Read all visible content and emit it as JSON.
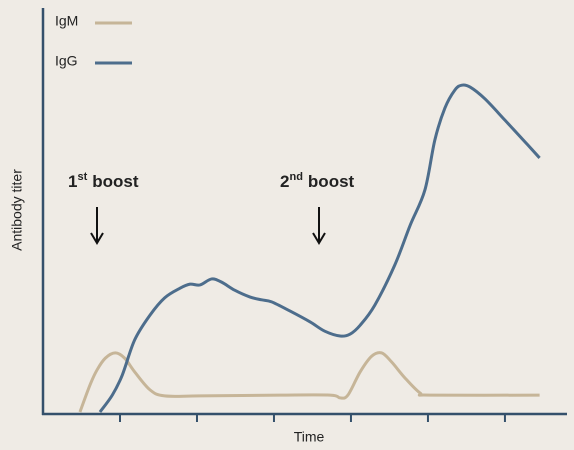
{
  "chart_data": {
    "type": "line",
    "xlabel": "Time",
    "ylabel": "Antibody titer",
    "xlim": [
      0,
      6.78
    ],
    "ylim": [
      0,
      100
    ],
    "xticks": [
      1,
      2,
      3,
      4,
      5,
      6
    ],
    "legend": "upper left",
    "annotations": [
      {
        "text": "1",
        "superscript": "st",
        "suffix": "boost"
      },
      {
        "text": "2",
        "superscript": "nd",
        "suffix": "boost"
      }
    ],
    "series": [
      {
        "name": "IgM",
        "color": "#c6b598",
        "x": [
          0.48,
          0.61,
          0.7,
          0.81,
          0.94,
          1.06,
          1.19,
          1.39,
          1.58,
          2.04,
          3.08,
          3.73,
          3.86,
          3.96,
          4.12,
          4.27,
          4.4,
          4.53,
          4.7,
          4.9,
          5.03,
          6.45
        ],
        "values": [
          0,
          6.7,
          10.4,
          13.4,
          14.7,
          13.4,
          10.0,
          5.5,
          4.0,
          4.0,
          4.2,
          4.2,
          3.5,
          4.2,
          10.0,
          13.9,
          14.7,
          12.4,
          8.5,
          4.7,
          4.2,
          4.2
        ]
      },
      {
        "name": "IgG",
        "color": "#4d6d8c",
        "x": [
          0.74,
          0.9,
          1.03,
          1.19,
          1.39,
          1.58,
          1.78,
          1.91,
          2.04,
          2.19,
          2.32,
          2.49,
          2.69,
          2.84,
          2.97,
          3.21,
          3.47,
          3.66,
          3.86,
          3.99,
          4.12,
          4.31,
          4.57,
          4.77,
          4.96,
          5.09,
          5.22,
          5.35,
          5.44,
          5.55,
          5.74,
          6.0,
          6.26,
          6.45
        ],
        "values": [
          0,
          4.2,
          9.2,
          17.9,
          24.1,
          28.4,
          30.8,
          31.8,
          31.6,
          33.1,
          32.3,
          30.3,
          28.6,
          27.9,
          27.4,
          25.1,
          22.4,
          20.1,
          18.9,
          19.4,
          21.6,
          26.6,
          36.6,
          46.5,
          55.2,
          67.7,
          75.6,
          80.1,
          81.3,
          80.8,
          77.9,
          72.6,
          67.2,
          63.2
        ]
      }
    ]
  }
}
